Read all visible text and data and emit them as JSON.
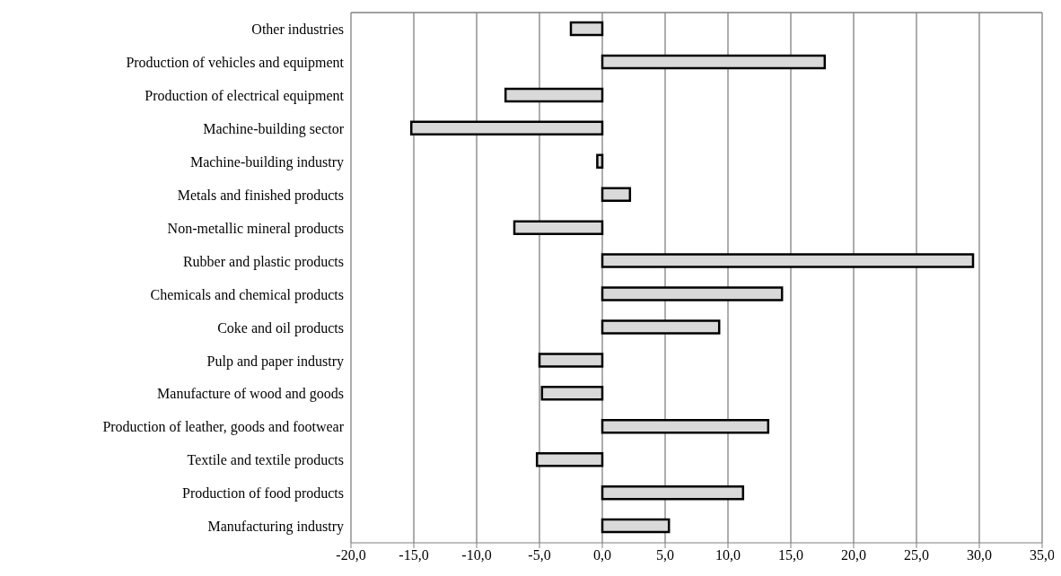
{
  "chart_data": {
    "type": "bar",
    "orientation": "horizontal",
    "categories": [
      "Other industries",
      "Production of vehicles and equipment",
      "Production of electrical equipment",
      "Machine-building sector",
      "Machine-building industry",
      "Metals and finished products",
      "Non-metallic mineral products",
      "Rubber and plastic products",
      "Chemicals and chemical products",
      "Coke and oil products",
      "Pulp and paper industry",
      "Manufacture of wood and goods",
      "Production of leather, goods and footwear",
      "Textile and textile products",
      "Production of food products",
      "Manufacturing industry"
    ],
    "values": [
      -2.5,
      17.7,
      -7.7,
      -15.2,
      -0.4,
      2.2,
      -7.0,
      29.5,
      14.3,
      9.3,
      -5.0,
      -4.8,
      13.2,
      -5.2,
      11.2,
      5.3
    ],
    "color": "#d9d9d9",
    "xlim": [
      -20,
      35
    ],
    "xticks": [
      {
        "value": -20,
        "label": "-20,0"
      },
      {
        "value": -15,
        "label": "-15,0"
      },
      {
        "value": -10,
        "label": "-10,0"
      },
      {
        "value": -5,
        "label": "-5,0"
      },
      {
        "value": 0,
        "label": "0,0"
      },
      {
        "value": 5,
        "label": "5,0"
      },
      {
        "value": 10,
        "label": "10,0"
      },
      {
        "value": 15,
        "label": "15,0"
      },
      {
        "value": 20,
        "label": "20,0"
      },
      {
        "value": 25,
        "label": "25,0"
      },
      {
        "value": 30,
        "label": "30,0"
      },
      {
        "value": 35,
        "label": "35,0"
      }
    ],
    "grid": "x",
    "legend": false
  }
}
